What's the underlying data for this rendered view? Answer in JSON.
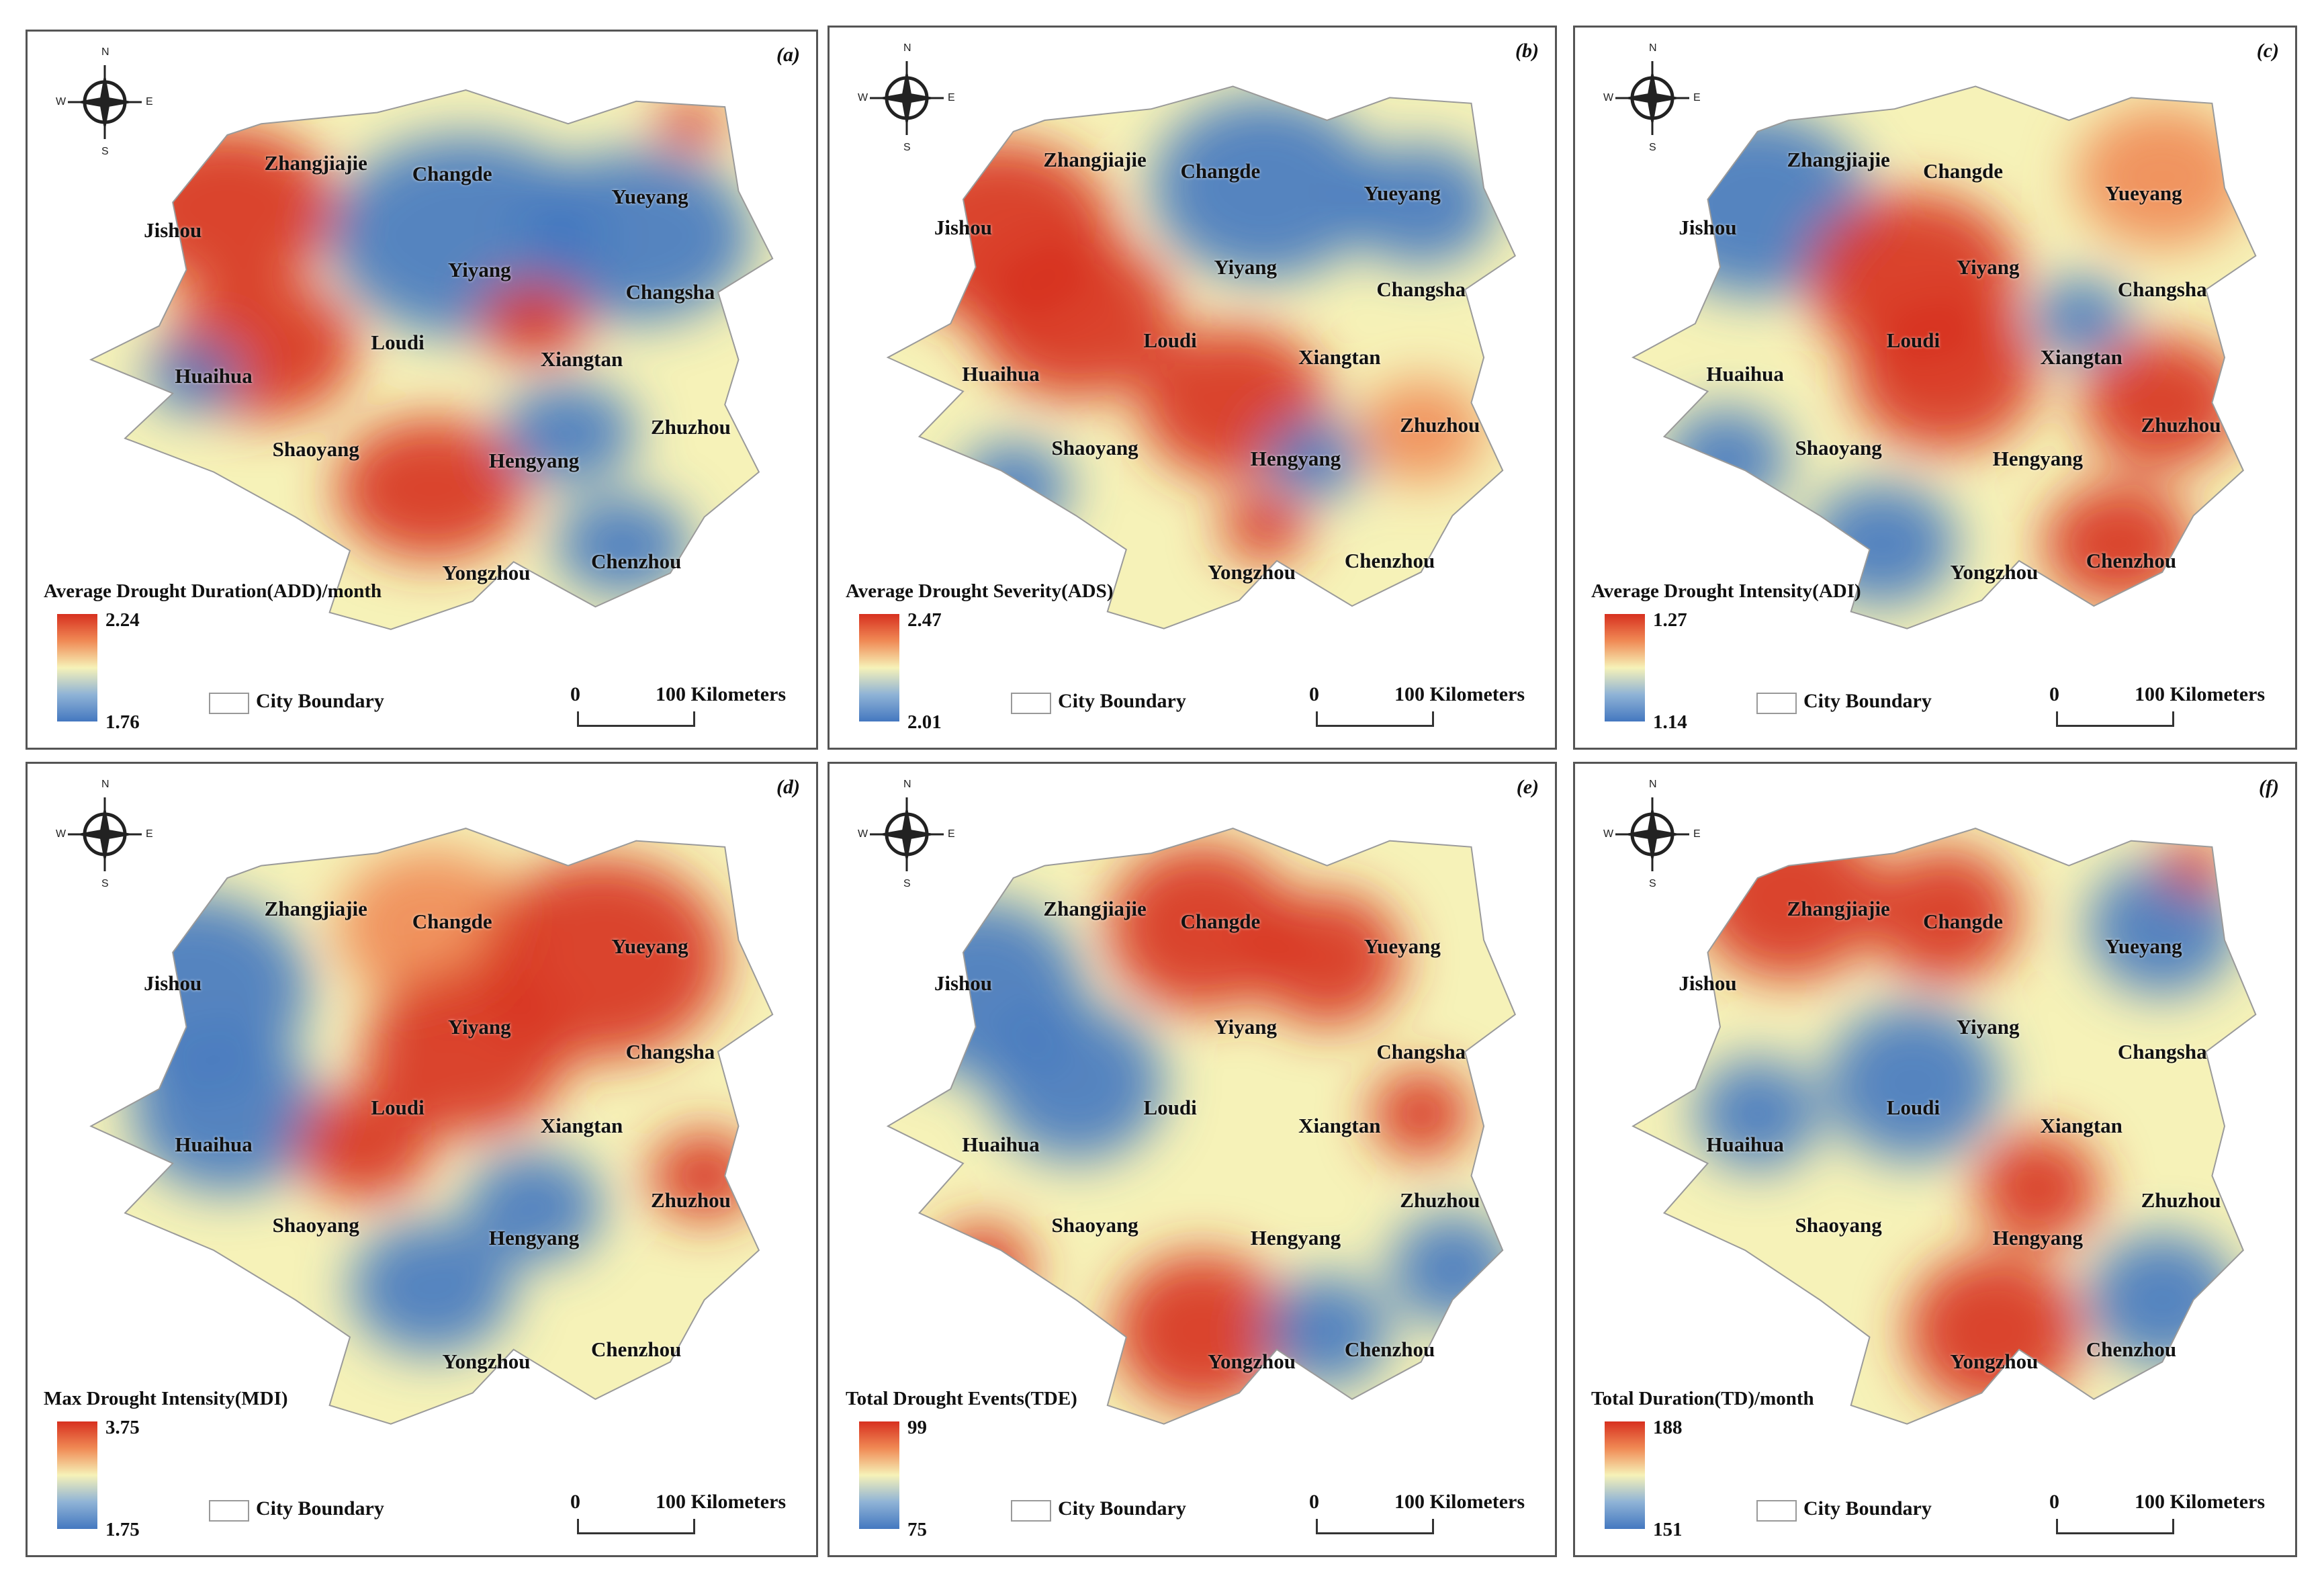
{
  "legend_colors": {
    "high": "#d7301f",
    "mid_high": "#f08a55",
    "mid": "#f6f2b8",
    "mid_low": "#8fb3d6",
    "low": "#4478c0"
  },
  "compass": {
    "n": "N",
    "s": "S",
    "e": "E",
    "w": "W"
  },
  "city_boundary_label": "City Boundary",
  "scale_bar": {
    "start": "0",
    "end": "100 Kilometers"
  },
  "panels": [
    {
      "label": "(a)",
      "legend_title": "Average Drought Duration(ADD)/month",
      "legend_max": "2.24",
      "legend_min": "1.76",
      "cities": [
        "Zhangjiajie",
        "Changde",
        "Yueyang",
        "Jishou",
        "Yiyang",
        "Changsha",
        "Loudi",
        "Xiangtan",
        "Huaihua",
        "Zhuzhou",
        "Shaoyang",
        "Hengyang",
        "Chenzhou",
        "Yongzhou"
      ]
    },
    {
      "label": "(b)",
      "legend_title": "Average Drought Severity(ADS)",
      "legend_max": "2.47",
      "legend_min": "2.01",
      "cities": [
        "Zhangjiajie",
        "Changde",
        "Yueyang",
        "Jishou",
        "Yiyang",
        "Changsha",
        "Loudi",
        "Xiangtan",
        "Huaihua",
        "Zhuzhou",
        "Shaoyang",
        "Hengyang",
        "Chenzhou",
        "Yongzhou"
      ]
    },
    {
      "label": "(c)",
      "legend_title": "Average Drought Intensity(ADI)",
      "legend_max": "1.27",
      "legend_min": "1.14",
      "cities": [
        "Zhangjiajie",
        "Changde",
        "Yueyang",
        "Jishou",
        "Yiyang",
        "Changsha",
        "Loudi",
        "Xiangtan",
        "Huaihua",
        "Zhuzhou",
        "Shaoyang",
        "Hengyang",
        "Chenzhou",
        "Yongzhou"
      ]
    },
    {
      "label": "(d)",
      "legend_title": "Max Drought Intensity(MDI)",
      "legend_max": "3.75",
      "legend_min": "1.75",
      "cities": [
        "Zhangjiajie",
        "Changde",
        "Yueyang",
        "Jishou",
        "Yiyang",
        "Changsha",
        "Loudi",
        "Xiangtan",
        "Huaihua",
        "Zhuzhou",
        "Shaoyang",
        "Hengyang",
        "Chenzhou",
        "Yongzhou"
      ]
    },
    {
      "label": "(e)",
      "legend_title": "Total Drought Events(TDE)",
      "legend_max": "99",
      "legend_min": "75",
      "cities": [
        "Zhangjiajie",
        "Changde",
        "Yueyang",
        "Jishou",
        "Yiyang",
        "Changsha",
        "Loudi",
        "Xiangtan",
        "Huaihua",
        "Zhuzhou",
        "Shaoyang",
        "Hengyang",
        "Chenzhou",
        "Yongzhou"
      ]
    },
    {
      "label": "(f)",
      "legend_title": "Total Duration(TD)/month",
      "legend_max": "188",
      "legend_min": "151",
      "cities": [
        "Zhangjiajie",
        "Changde",
        "Yueyang",
        "Jishou",
        "Yiyang",
        "Changsha",
        "Loudi",
        "Xiangtan",
        "Huaihua",
        "Zhuzhou",
        "Shaoyang",
        "Hengyang",
        "Chenzhou",
        "Yongzhou"
      ]
    }
  ]
}
